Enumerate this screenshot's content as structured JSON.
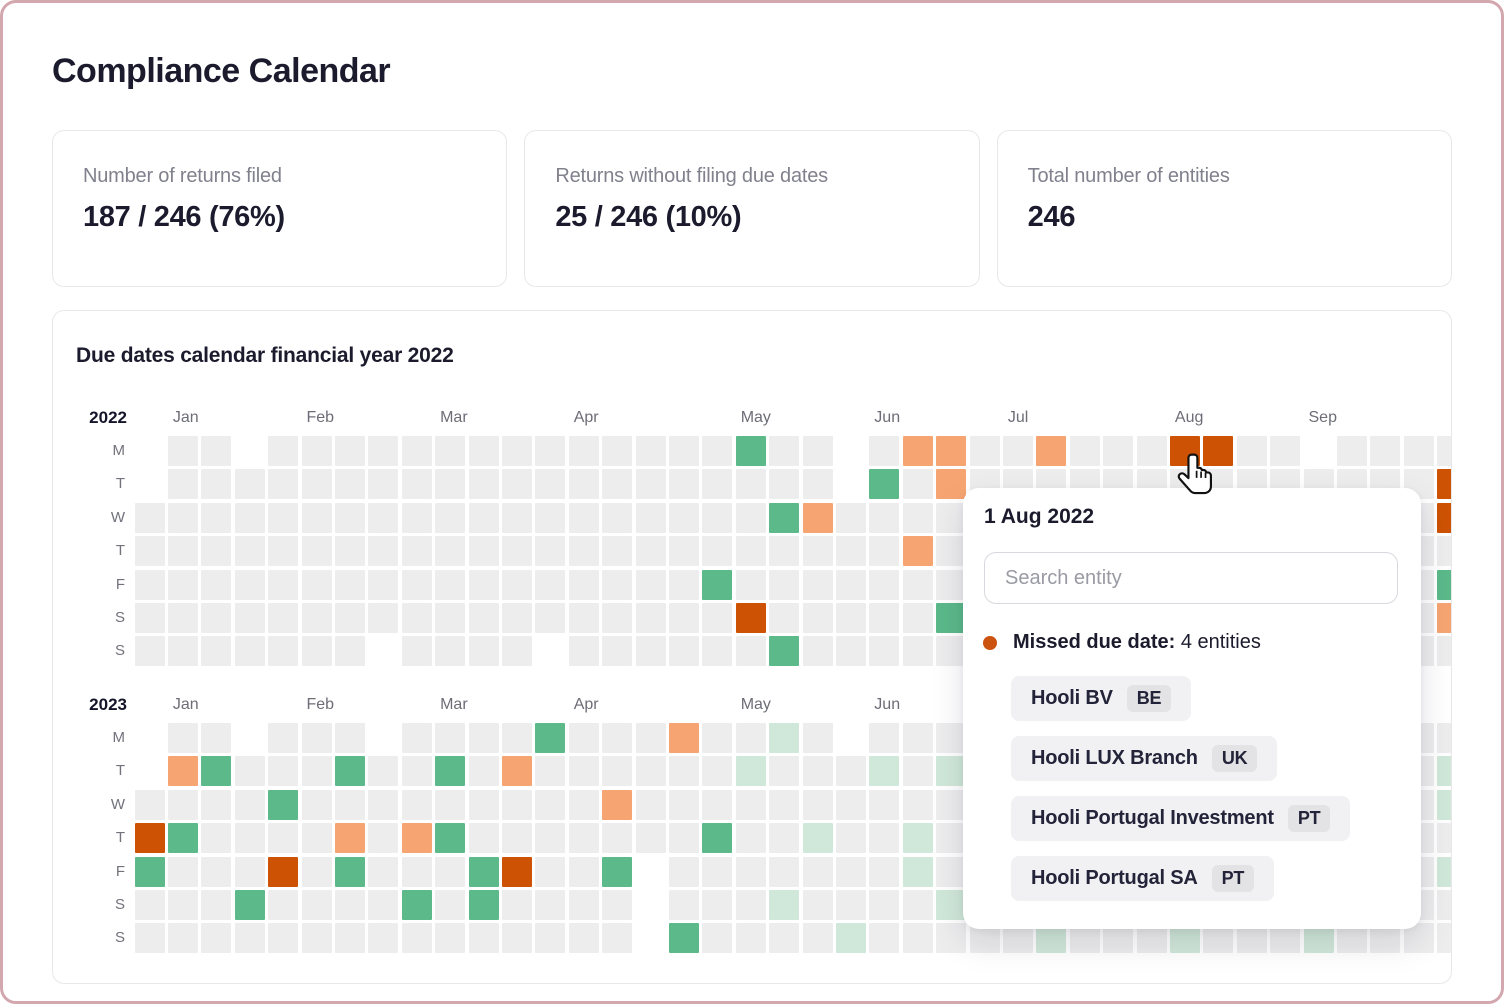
{
  "page": {
    "title": "Compliance Calendar"
  },
  "stats": [
    {
      "label": "Number of returns filed",
      "value": "187 / 246 (76%)"
    },
    {
      "label": "Returns without filing due dates",
      "value": "25 / 246 (10%)"
    },
    {
      "label": "Total number of entities",
      "value": "246"
    }
  ],
  "calendar": {
    "title": "Due dates calendar financial year 2022",
    "day_labels": [
      "M",
      "T",
      "W",
      "T",
      "F",
      "S",
      "S"
    ],
    "months": [
      "Jan",
      "Feb",
      "Mar",
      "Apr",
      "May",
      "Jun",
      "Jul",
      "Aug",
      "Sep"
    ],
    "month_cols": [
      1,
      5,
      9,
      13,
      18,
      22,
      26,
      31,
      35
    ],
    "num_cols": 40,
    "cell_states": {
      "_": "empty",
      ".": "none",
      "G": "filed-green",
      "L": "upcoming-light-green",
      "O": "warning-orange",
      "D": "missed-dark-orange"
    },
    "years": [
      {
        "label": "2022",
        "rows": [
          "_.._..............G.._.OO..O...DD.._....",
          "_...................._G.O..............D",
          "...................GO..................D",
          ".......................O................",
          ".................G.....................G",
          "..................D.....G..............O",
          "......._...._......G...................."
        ]
      },
      {
        "label": "2023",
        "rows": [
          "_.._..._....G...O..L._..................",
          "_OG...G..G.O......L...L.L..............L",
          "....G.........O........................L",
          "DG....O.OG.......G..L..L................",
          "G...D.G...GD..G_.......L...............L",
          "...G....G.G...._...L....L...............",
          "..............._G....L.....L...L...L...."
        ]
      }
    ]
  },
  "popover": {
    "title": "1 Aug 2022",
    "search_placeholder": "Search entity",
    "missed_label": "Missed due date:",
    "missed_value": "4 entities",
    "entities": [
      {
        "name": "Hooli BV",
        "country": "BE"
      },
      {
        "name": "Hooli LUX Branch",
        "country": "UK"
      },
      {
        "name": "Hooli Portugal Investment",
        "country": "PT"
      },
      {
        "name": "Hooli Portugal SA",
        "country": "PT"
      }
    ]
  },
  "colors": {
    "green": "#5bb98a",
    "light_green": "#d0e8d9",
    "orange": "#f6a572",
    "dark_orange": "#cd5204",
    "cell_gray": "#ededee",
    "accent_dot": "#cc5210",
    "frame_border": "#d2a7ae"
  }
}
